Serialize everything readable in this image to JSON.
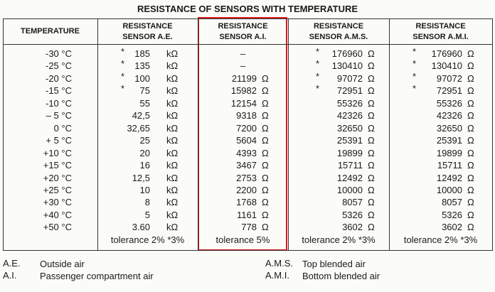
{
  "title": "RESISTANCE OF SENSORS WITH TEMPERATURE",
  "table": {
    "headers": [
      {
        "lines": [
          "TEMPERATURE"
        ]
      },
      {
        "lines": [
          "RESISTANCE",
          "SENSOR A.E."
        ]
      },
      {
        "lines": [
          "RESISTANCE",
          "SENSOR A.I."
        ]
      },
      {
        "lines": [
          "RESISTANCE",
          "SENSOR A.M.S."
        ]
      },
      {
        "lines": [
          "RESISTANCE",
          "SENSOR A.M.I."
        ]
      }
    ],
    "rows": [
      [
        "-30 °C",
        {
          "star": "*",
          "value": "185",
          "unit": "kΩ"
        },
        {
          "value": "–"
        },
        {
          "star": "*",
          "value": "176960",
          "unit": "Ω"
        },
        {
          "star": "*",
          "value": "176960",
          "unit": "Ω"
        }
      ],
      [
        "-25 °C",
        {
          "star": "*",
          "value": "135",
          "unit": "kΩ"
        },
        {
          "value": "–"
        },
        {
          "star": "*",
          "value": "130410",
          "unit": "Ω"
        },
        {
          "star": "*",
          "value": "130410",
          "unit": "Ω"
        }
      ],
      [
        "-20 °C",
        {
          "star": "*",
          "value": "100",
          "unit": "kΩ"
        },
        {
          "value": "21199",
          "unit": "Ω"
        },
        {
          "star": "*",
          "value": "97072",
          "unit": "Ω"
        },
        {
          "star": "*",
          "value": "97072",
          "unit": "Ω"
        }
      ],
      [
        "-15 °C",
        {
          "star": "*",
          "value": "75",
          "unit": "kΩ"
        },
        {
          "value": "15982",
          "unit": "Ω"
        },
        {
          "star": "*",
          "value": "72951",
          "unit": "Ω"
        },
        {
          "star": "*",
          "value": "72951",
          "unit": "Ω"
        }
      ],
      [
        "-10 °C",
        {
          "value": "55",
          "unit": "kΩ"
        },
        {
          "value": "12154",
          "unit": "Ω"
        },
        {
          "value": "55326",
          "unit": "Ω"
        },
        {
          "value": "55326",
          "unit": "Ω"
        }
      ],
      [
        "– 5 °C",
        {
          "value": "42,5",
          "unit": "kΩ"
        },
        {
          "value": "9318",
          "unit": "Ω"
        },
        {
          "value": "42326",
          "unit": "Ω"
        },
        {
          "value": "42326",
          "unit": "Ω"
        }
      ],
      [
        "0 °C",
        {
          "value": "32,65",
          "unit": "kΩ"
        },
        {
          "value": "7200",
          "unit": "Ω"
        },
        {
          "value": "32650",
          "unit": "Ω"
        },
        {
          "value": "32650",
          "unit": "Ω"
        }
      ],
      [
        "+ 5 °C",
        {
          "value": "25",
          "unit": "kΩ"
        },
        {
          "value": "5604",
          "unit": "Ω"
        },
        {
          "value": "25391",
          "unit": "Ω"
        },
        {
          "value": "25391",
          "unit": "Ω"
        }
      ],
      [
        "+10 °C",
        {
          "value": "20",
          "unit": "kΩ"
        },
        {
          "value": "4393",
          "unit": "Ω"
        },
        {
          "value": "19899",
          "unit": "Ω"
        },
        {
          "value": "19899",
          "unit": "Ω"
        }
      ],
      [
        "+15 °C",
        {
          "value": "16",
          "unit": "kΩ"
        },
        {
          "value": "3467",
          "unit": "Ω"
        },
        {
          "value": "15711",
          "unit": "Ω"
        },
        {
          "value": "15711",
          "unit": "Ω"
        }
      ],
      [
        "+20 °C",
        {
          "value": "12,5",
          "unit": "kΩ"
        },
        {
          "value": "2753",
          "unit": "Ω"
        },
        {
          "value": "12492",
          "unit": "Ω"
        },
        {
          "value": "12492",
          "unit": "Ω"
        }
      ],
      [
        "+25 °C",
        {
          "value": "10",
          "unit": "kΩ"
        },
        {
          "value": "2200",
          "unit": "Ω"
        },
        {
          "value": "10000",
          "unit": "Ω"
        },
        {
          "value": "10000",
          "unit": "Ω"
        }
      ],
      [
        "+30 °C",
        {
          "value": "8",
          "unit": "kΩ"
        },
        {
          "value": "1768",
          "unit": "Ω"
        },
        {
          "value": "8057",
          "unit": "Ω"
        },
        {
          "value": "8057",
          "unit": "Ω"
        }
      ],
      [
        "+40 °C",
        {
          "value": "5",
          "unit": "kΩ"
        },
        {
          "value": "1161",
          "unit": "Ω"
        },
        {
          "value": "5326",
          "unit": "Ω"
        },
        {
          "value": "5326",
          "unit": "Ω"
        }
      ],
      [
        "+50 °C",
        {
          "value": "3.60",
          "unit": "kΩ"
        },
        {
          "value": "778",
          "unit": "Ω"
        },
        {
          "value": "3602",
          "unit": "Ω"
        },
        {
          "value": "3602",
          "unit": "Ω"
        }
      ]
    ],
    "tolerances": [
      "tolerance 2%  *3%",
      "tolerance 5%",
      "tolerance 2%  *3%",
      "tolerance 2%  *3%"
    ]
  },
  "legend": [
    {
      "abbr": "A.E.",
      "text": "Outside air"
    },
    {
      "abbr": "A.I.",
      "text": "Passenger compartment air"
    },
    {
      "abbr": "A.M.S.",
      "text": "Top blended air"
    },
    {
      "abbr": "A.M.I.",
      "text": "Bottom blended air"
    }
  ]
}
